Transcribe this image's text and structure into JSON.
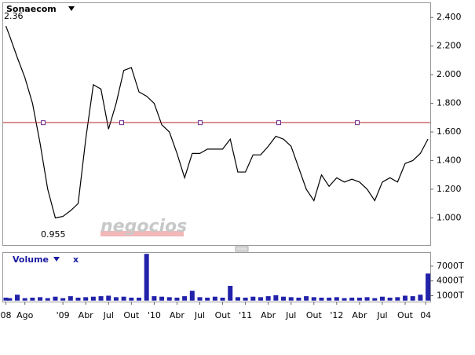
{
  "chart_data": [
    {
      "type": "line",
      "title": "Sonaecom",
      "color": "#000000",
      "x": [
        4.5,
        5,
        6,
        7,
        8,
        9,
        10,
        11,
        12,
        13,
        14,
        15,
        16,
        17,
        18,
        19,
        20,
        21,
        22,
        23,
        24,
        25,
        26,
        27,
        28,
        29,
        30,
        31,
        32,
        33,
        34,
        35,
        36,
        37,
        38,
        39,
        40,
        41,
        42,
        43,
        44,
        45,
        46,
        47,
        48,
        49,
        50,
        51,
        52,
        53,
        54,
        55,
        56,
        57,
        58,
        59,
        60
      ],
      "values": [
        2.34,
        2.27,
        2.12,
        1.98,
        1.8,
        1.52,
        1.2,
        1.0,
        1.01,
        1.05,
        1.1,
        1.55,
        1.93,
        1.9,
        1.62,
        1.8,
        2.03,
        2.05,
        1.88,
        1.85,
        1.8,
        1.65,
        1.6,
        1.45,
        1.28,
        1.45,
        1.45,
        1.48,
        1.48,
        1.48,
        1.55,
        1.32,
        1.32,
        1.44,
        1.44,
        1.5,
        1.57,
        1.55,
        1.5,
        1.35,
        1.2,
        1.12,
        1.3,
        1.22,
        1.28,
        1.25,
        1.27,
        1.25,
        1.2,
        1.12,
        1.25,
        1.28,
        1.25,
        1.38,
        1.4,
        1.45,
        1.55
      ],
      "xlim": [
        4.14,
        60.3
      ],
      "ylim": [
        0.81,
        2.5
      ],
      "yticks": [
        {
          "value": 1.0,
          "label": "1.000"
        },
        {
          "value": 1.2,
          "label": "1.200"
        },
        {
          "value": 1.4,
          "label": "1.400"
        },
        {
          "value": 1.6,
          "label": "1.600"
        },
        {
          "value": 1.8,
          "label": "1.800"
        },
        {
          "value": 2.0,
          "label": "2.000"
        },
        {
          "value": 2.2,
          "label": "2.200"
        },
        {
          "value": 2.4,
          "label": "2.400"
        }
      ],
      "reference_line": 1.665,
      "reference_color": "#b22222",
      "annotations": [
        "2.36",
        "0.955"
      ],
      "watermark": "negocios"
    },
    {
      "type": "bar",
      "title": "Volume",
      "close_label": "x",
      "color": "#2222aa",
      "x": [
        4.5,
        5,
        6,
        7,
        8,
        9,
        10,
        11,
        12,
        13,
        14,
        15,
        16,
        17,
        18,
        19,
        20,
        21,
        22,
        23,
        24,
        25,
        26,
        27,
        28,
        29,
        30,
        31,
        32,
        33,
        34,
        35,
        36,
        37,
        38,
        39,
        40,
        41,
        42,
        43,
        44,
        45,
        46,
        47,
        48,
        49,
        50,
        51,
        52,
        53,
        54,
        55,
        56,
        57,
        58,
        59,
        60
      ],
      "values": [
        600,
        500,
        1200,
        500,
        600,
        700,
        500,
        800,
        500,
        900,
        600,
        700,
        800,
        900,
        1000,
        700,
        800,
        600,
        600,
        9500,
        900,
        800,
        700,
        600,
        900,
        2000,
        700,
        600,
        800,
        600,
        3000,
        700,
        600,
        800,
        700,
        900,
        1100,
        800,
        700,
        600,
        900,
        700,
        600,
        600,
        700,
        500,
        600,
        600,
        700,
        500,
        800,
        600,
        700,
        1000,
        900,
        1200,
        5500
      ],
      "xlim": [
        4.14,
        60.3
      ],
      "ylim": [
        -200,
        9700
      ],
      "yticks": [
        {
          "value": 1000,
          "label": "1000T"
        },
        {
          "value": 4000,
          "label": "4000T"
        },
        {
          "value": 7000,
          "label": "7000T"
        }
      ],
      "xticks": [
        {
          "value": 4.5,
          "label": "08"
        },
        {
          "value": 7,
          "label": "Ago"
        },
        {
          "value": 12,
          "label": "'09"
        },
        {
          "value": 15,
          "label": "Abr"
        },
        {
          "value": 18,
          "label": "Jul"
        },
        {
          "value": 21,
          "label": "Out"
        },
        {
          "value": 24,
          "label": "'10"
        },
        {
          "value": 27,
          "label": "Abr"
        },
        {
          "value": 30,
          "label": "Jul"
        },
        {
          "value": 33,
          "label": "Out"
        },
        {
          "value": 36,
          "label": "'11"
        },
        {
          "value": 39,
          "label": "Abr"
        },
        {
          "value": 42,
          "label": "Jul"
        },
        {
          "value": 45,
          "label": "Out"
        },
        {
          "value": 48,
          "label": "'12"
        },
        {
          "value": 51,
          "label": "Abr"
        },
        {
          "value": 54,
          "label": "Jul"
        },
        {
          "value": 57,
          "label": "Out"
        },
        {
          "value": 59.7,
          "label": "04"
        }
      ]
    }
  ]
}
